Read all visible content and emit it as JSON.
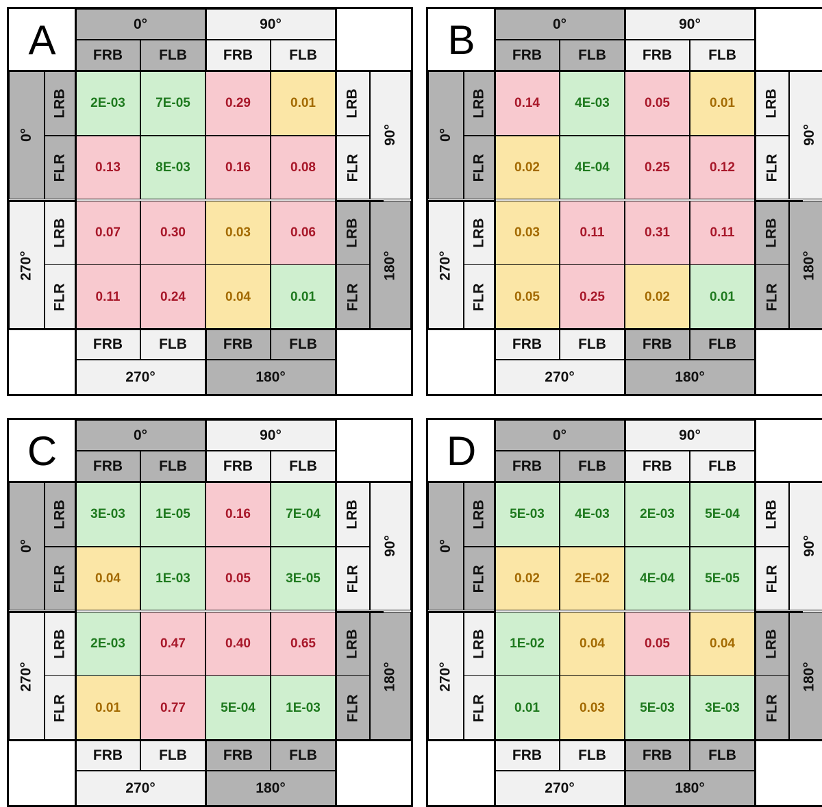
{
  "angles": {
    "a0": "0°",
    "a90": "90°",
    "a180": "180°",
    "a270": "270°"
  },
  "labels": {
    "frb": "FRB",
    "flb": "FLB",
    "lrb": "LRB",
    "flr": "FLR"
  },
  "colors": {
    "green_bg": "#cfefcf",
    "red_bg": "#f8c9cf",
    "yellow_bg": "#fbe6a6",
    "dark_header": "#b3b3b3",
    "light_header": "#f1f1f1"
  },
  "panels": [
    {
      "letter": "A",
      "cells": [
        [
          {
            "v": "2E-03",
            "c": "green"
          },
          {
            "v": "7E-05",
            "c": "green"
          },
          {
            "v": "0.29",
            "c": "red"
          },
          {
            "v": "0.01",
            "c": "yellow"
          }
        ],
        [
          {
            "v": "0.13",
            "c": "red"
          },
          {
            "v": "8E-03",
            "c": "green"
          },
          {
            "v": "0.16",
            "c": "red"
          },
          {
            "v": "0.08",
            "c": "red"
          }
        ],
        [
          {
            "v": "0.07",
            "c": "red"
          },
          {
            "v": "0.30",
            "c": "red"
          },
          {
            "v": "0.03",
            "c": "yellow"
          },
          {
            "v": "0.06",
            "c": "red"
          }
        ],
        [
          {
            "v": "0.11",
            "c": "red"
          },
          {
            "v": "0.24",
            "c": "red"
          },
          {
            "v": "0.04",
            "c": "yellow"
          },
          {
            "v": "0.01",
            "c": "green"
          }
        ]
      ]
    },
    {
      "letter": "B",
      "cells": [
        [
          {
            "v": "0.14",
            "c": "red"
          },
          {
            "v": "4E-03",
            "c": "green"
          },
          {
            "v": "0.05",
            "c": "red"
          },
          {
            "v": "0.01",
            "c": "yellow"
          }
        ],
        [
          {
            "v": "0.02",
            "c": "yellow"
          },
          {
            "v": "4E-04",
            "c": "green"
          },
          {
            "v": "0.25",
            "c": "red"
          },
          {
            "v": "0.12",
            "c": "red"
          }
        ],
        [
          {
            "v": "0.03",
            "c": "yellow"
          },
          {
            "v": "0.11",
            "c": "red"
          },
          {
            "v": "0.31",
            "c": "red"
          },
          {
            "v": "0.11",
            "c": "red"
          }
        ],
        [
          {
            "v": "0.05",
            "c": "yellow"
          },
          {
            "v": "0.25",
            "c": "red"
          },
          {
            "v": "0.02",
            "c": "yellow"
          },
          {
            "v": "0.01",
            "c": "green"
          }
        ]
      ]
    },
    {
      "letter": "C",
      "cells": [
        [
          {
            "v": "3E-03",
            "c": "green"
          },
          {
            "v": "1E-05",
            "c": "green"
          },
          {
            "v": "0.16",
            "c": "red"
          },
          {
            "v": "7E-04",
            "c": "green"
          }
        ],
        [
          {
            "v": "0.04",
            "c": "yellow"
          },
          {
            "v": "1E-03",
            "c": "green"
          },
          {
            "v": "0.05",
            "c": "red"
          },
          {
            "v": "3E-05",
            "c": "green"
          }
        ],
        [
          {
            "v": "2E-03",
            "c": "green"
          },
          {
            "v": "0.47",
            "c": "red"
          },
          {
            "v": "0.40",
            "c": "red"
          },
          {
            "v": "0.65",
            "c": "red"
          }
        ],
        [
          {
            "v": "0.01",
            "c": "yellow"
          },
          {
            "v": "0.77",
            "c": "red"
          },
          {
            "v": "5E-04",
            "c": "green"
          },
          {
            "v": "1E-03",
            "c": "green"
          }
        ]
      ]
    },
    {
      "letter": "D",
      "cells": [
        [
          {
            "v": "5E-03",
            "c": "green"
          },
          {
            "v": "4E-03",
            "c": "green"
          },
          {
            "v": "2E-03",
            "c": "green"
          },
          {
            "v": "5E-04",
            "c": "green"
          }
        ],
        [
          {
            "v": "0.02",
            "c": "yellow"
          },
          {
            "v": "2E-02",
            "c": "yellow"
          },
          {
            "v": "4E-04",
            "c": "green"
          },
          {
            "v": "5E-05",
            "c": "green"
          }
        ],
        [
          {
            "v": "1E-02",
            "c": "green"
          },
          {
            "v": "0.04",
            "c": "yellow"
          },
          {
            "v": "0.05",
            "c": "red"
          },
          {
            "v": "0.04",
            "c": "yellow"
          }
        ],
        [
          {
            "v": "0.01",
            "c": "green"
          },
          {
            "v": "0.03",
            "c": "yellow"
          },
          {
            "v": "5E-03",
            "c": "green"
          },
          {
            "v": "3E-03",
            "c": "green"
          }
        ]
      ]
    }
  ]
}
